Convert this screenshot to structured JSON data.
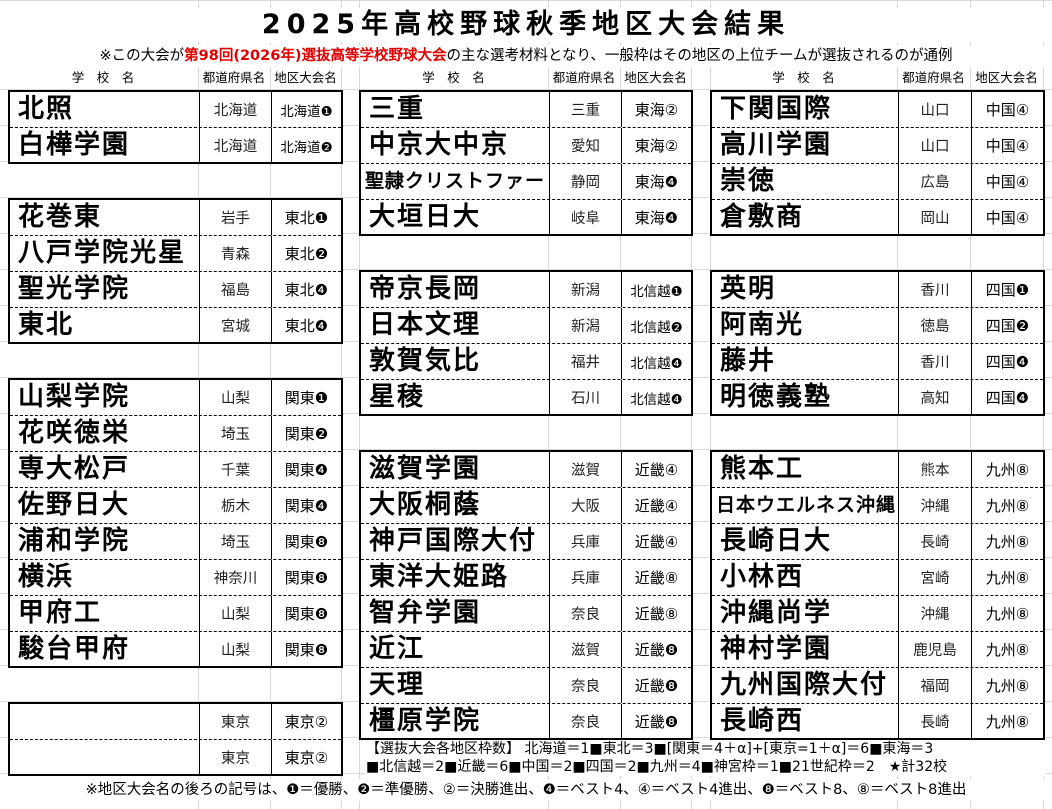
{
  "title": "2025年高校野球秋季地区大会結果",
  "subtitle": {
    "pre": "※この大会が",
    "highlight": "第98回(2026年)選抜高等学校野球大会",
    "post": "の主な選考材料となり、一般枠はその地区の上位チームが選抜されるのが通例"
  },
  "column_headers": {
    "school": "学　校　名",
    "prefecture": "都道府県名",
    "region": "地区大会名"
  },
  "columns": [
    {
      "blocks": [
        {
          "rows": [
            {
              "school": "北照",
              "prefecture": "北海道",
              "region": "北海道❶"
            },
            {
              "school": "白樺学園",
              "prefecture": "北海道",
              "region": "北海道❷"
            }
          ]
        },
        {
          "rows": [
            {
              "school": "花巻東",
              "prefecture": "岩手",
              "region": "東北❶"
            },
            {
              "school": "八戸学院光星",
              "prefecture": "青森",
              "region": "東北❷"
            },
            {
              "school": "聖光学院",
              "prefecture": "福島",
              "region": "東北❹"
            },
            {
              "school": "東北",
              "prefecture": "宮城",
              "region": "東北❹"
            }
          ]
        },
        {
          "rows": [
            {
              "school": "山梨学院",
              "prefecture": "山梨",
              "region": "関東❶"
            },
            {
              "school": "花咲徳栄",
              "prefecture": "埼玉",
              "region": "関東❷"
            },
            {
              "school": "専大松戸",
              "prefecture": "千葉",
              "region": "関東❹"
            },
            {
              "school": "佐野日大",
              "prefecture": "栃木",
              "region": "関東❹"
            },
            {
              "school": "浦和学院",
              "prefecture": "埼玉",
              "region": "関東❽"
            },
            {
              "school": "横浜",
              "prefecture": "神奈川",
              "region": "関東❽"
            },
            {
              "school": "甲府工",
              "prefecture": "山梨",
              "region": "関東❽"
            },
            {
              "school": "駿台甲府",
              "prefecture": "山梨",
              "region": "関東❽"
            }
          ]
        },
        {
          "rows": [
            {
              "school": "",
              "prefecture": "東京",
              "region": "東京②"
            },
            {
              "school": "",
              "prefecture": "東京",
              "region": "東京②"
            }
          ]
        }
      ]
    },
    {
      "blocks": [
        {
          "rows": [
            {
              "school": "三重",
              "prefecture": "三重",
              "region": "東海②"
            },
            {
              "school": "中京大中京",
              "prefecture": "愛知",
              "region": "東海②"
            },
            {
              "school": "聖隷クリストファー",
              "prefecture": "静岡",
              "region": "東海❹"
            },
            {
              "school": "大垣日大",
              "prefecture": "岐阜",
              "region": "東海❹"
            }
          ]
        },
        {
          "rows": [
            {
              "school": "帝京長岡",
              "prefecture": "新潟",
              "region": "北信越❶"
            },
            {
              "school": "日本文理",
              "prefecture": "新潟",
              "region": "北信越❷"
            },
            {
              "school": "敦賀気比",
              "prefecture": "福井",
              "region": "北信越❹"
            },
            {
              "school": "星稜",
              "prefecture": "石川",
              "region": "北信越❹"
            }
          ]
        },
        {
          "rows": [
            {
              "school": "滋賀学園",
              "prefecture": "滋賀",
              "region": "近畿④"
            },
            {
              "school": "大阪桐蔭",
              "prefecture": "大阪",
              "region": "近畿④"
            },
            {
              "school": "神戸国際大付",
              "prefecture": "兵庫",
              "region": "近畿④"
            },
            {
              "school": "東洋大姫路",
              "prefecture": "兵庫",
              "region": "近畿⑧"
            },
            {
              "school": "智弁学園",
              "prefecture": "奈良",
              "region": "近畿⑧"
            },
            {
              "school": "近江",
              "prefecture": "滋賀",
              "region": "近畿❽"
            },
            {
              "school": "天理",
              "prefecture": "奈良",
              "region": "近畿❽"
            },
            {
              "school": "橿原学院",
              "prefecture": "奈良",
              "region": "近畿❽"
            }
          ]
        }
      ]
    },
    {
      "blocks": [
        {
          "rows": [
            {
              "school": "下関国際",
              "prefecture": "山口",
              "region": "中国④"
            },
            {
              "school": "高川学園",
              "prefecture": "山口",
              "region": "中国④"
            },
            {
              "school": "崇徳",
              "prefecture": "広島",
              "region": "中国④"
            },
            {
              "school": "倉敷商",
              "prefecture": "岡山",
              "region": "中国④"
            }
          ]
        },
        {
          "rows": [
            {
              "school": "英明",
              "prefecture": "香川",
              "region": "四国❶"
            },
            {
              "school": "阿南光",
              "prefecture": "徳島",
              "region": "四国❷"
            },
            {
              "school": "藤井",
              "prefecture": "香川",
              "region": "四国❹"
            },
            {
              "school": "明徳義塾",
              "prefecture": "高知",
              "region": "四国❹"
            }
          ]
        },
        {
          "rows": [
            {
              "school": "熊本工",
              "prefecture": "熊本",
              "region": "九州⑧"
            },
            {
              "school": "日本ウエルネス沖縄",
              "prefecture": "沖縄",
              "region": "九州⑧"
            },
            {
              "school": "長崎日大",
              "prefecture": "長崎",
              "region": "九州⑧"
            },
            {
              "school": "小林西",
              "prefecture": "宮崎",
              "region": "九州⑧"
            },
            {
              "school": "沖縄尚学",
              "prefecture": "沖縄",
              "region": "九州⑧"
            },
            {
              "school": "神村学園",
              "prefecture": "鹿児島",
              "region": "九州⑧"
            },
            {
              "school": "九州国際大付",
              "prefecture": "福岡",
              "region": "九州⑧"
            },
            {
              "school": "長崎西",
              "prefecture": "長崎",
              "region": "九州⑧"
            }
          ]
        }
      ]
    }
  ],
  "quota_note": {
    "line1": "【選抜大会各地区枠数】 北海道＝1■東北＝3■[関東＝4＋α]+[東京=1＋α]＝6■東海＝3",
    "line2": "■北信越＝2■近畿＝6■中国＝2■四国＝2■九州＝4■神宮枠＝1■21世紀枠＝2　★計32校"
  },
  "footer": "※地区大会名の後ろの記号は、❶＝優勝、❷＝準優勝、②＝決勝進出、❹＝ベスト4、④＝ベスト4進出、❽＝ベスト8、⑧＝ベスト8進出",
  "colors": {
    "highlight": "#e00000",
    "grid": "#d9d9d9"
  }
}
